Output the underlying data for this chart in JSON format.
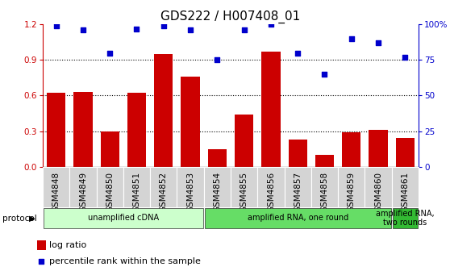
{
  "title": "GDS222 / H007408_01",
  "samples": [
    "GSM4848",
    "GSM4849",
    "GSM4850",
    "GSM4851",
    "GSM4852",
    "GSM4853",
    "GSM4854",
    "GSM4855",
    "GSM4856",
    "GSM4857",
    "GSM4858",
    "GSM4859",
    "GSM4860",
    "GSM4861"
  ],
  "log_ratio": [
    0.62,
    0.63,
    0.3,
    0.62,
    0.95,
    0.76,
    0.15,
    0.44,
    0.97,
    0.23,
    0.1,
    0.29,
    0.31,
    0.24
  ],
  "percentile_rank": [
    99,
    96,
    80,
    97,
    99,
    96,
    75,
    96,
    100,
    80,
    65,
    90,
    87,
    77
  ],
  "bar_color": "#cc0000",
  "dot_color": "#0000cc",
  "ylim_left": [
    0,
    1.2
  ],
  "ylim_right": [
    0,
    100
  ],
  "yticks_left": [
    0,
    0.3,
    0.6,
    0.9,
    1.2
  ],
  "yticks_right": [
    0,
    25,
    50,
    75,
    100
  ],
  "ytick_labels_right": [
    "0",
    "25",
    "50",
    "75",
    "100%"
  ],
  "protocol_groups": [
    {
      "label": "unamplified cDNA",
      "start": 0,
      "end": 6,
      "color": "#ccffcc"
    },
    {
      "label": "amplified RNA, one round",
      "start": 6,
      "end": 13,
      "color": "#66dd66"
    },
    {
      "label": "amplified RNA,\ntwo rounds",
      "start": 13,
      "end": 14,
      "color": "#33bb33"
    }
  ],
  "legend_items": [
    {
      "color": "#cc0000",
      "label": "log ratio"
    },
    {
      "color": "#0000cc",
      "label": "percentile rank within the sample"
    }
  ],
  "protocol_label": "protocol",
  "title_fontsize": 11,
  "tick_fontsize": 7.5,
  "label_fontsize": 8
}
